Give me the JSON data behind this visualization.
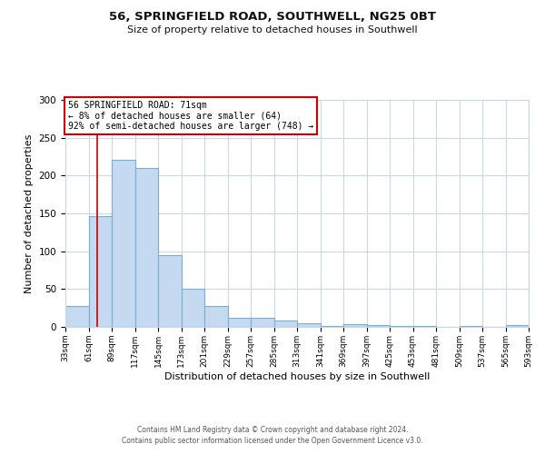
{
  "title": "56, SPRINGFIELD ROAD, SOUTHWELL, NG25 0BT",
  "subtitle": "Size of property relative to detached houses in Southwell",
  "xlabel": "Distribution of detached houses by size in Southwell",
  "ylabel": "Number of detached properties",
  "bin_edges": [
    33,
    61,
    89,
    117,
    145,
    173,
    201,
    229,
    257,
    285,
    313,
    341,
    369,
    397,
    425,
    453,
    481,
    509,
    537,
    565,
    593
  ],
  "bar_heights": [
    28,
    147,
    221,
    210,
    95,
    50,
    28,
    12,
    12,
    8,
    5,
    1,
    4,
    3,
    1,
    1,
    0,
    1,
    0,
    2
  ],
  "bar_color": "#c5d9f0",
  "bar_edge_color": "#7aafd4",
  "ylim": [
    0,
    300
  ],
  "yticks": [
    0,
    50,
    100,
    150,
    200,
    250,
    300
  ],
  "vline_x": 71,
  "vline_color": "#cc0000",
  "annotation_line1": "56 SPRINGFIELD ROAD: 71sqm",
  "annotation_line2": "← 8% of detached houses are smaller (64)",
  "annotation_line3": "92% of semi-detached houses are larger (748) →",
  "annotation_box_color": "#cc0000",
  "footer_line1": "Contains HM Land Registry data © Crown copyright and database right 2024.",
  "footer_line2": "Contains public sector information licensed under the Open Government Licence v3.0.",
  "background_color": "#ffffff",
  "grid_color": "#ccd6e8",
  "tick_labels": [
    "33sqm",
    "61sqm",
    "89sqm",
    "117sqm",
    "145sqm",
    "173sqm",
    "201sqm",
    "229sqm",
    "257sqm",
    "285sqm",
    "313sqm",
    "341sqm",
    "369sqm",
    "397sqm",
    "425sqm",
    "453sqm",
    "481sqm",
    "509sqm",
    "537sqm",
    "565sqm",
    "593sqm"
  ]
}
